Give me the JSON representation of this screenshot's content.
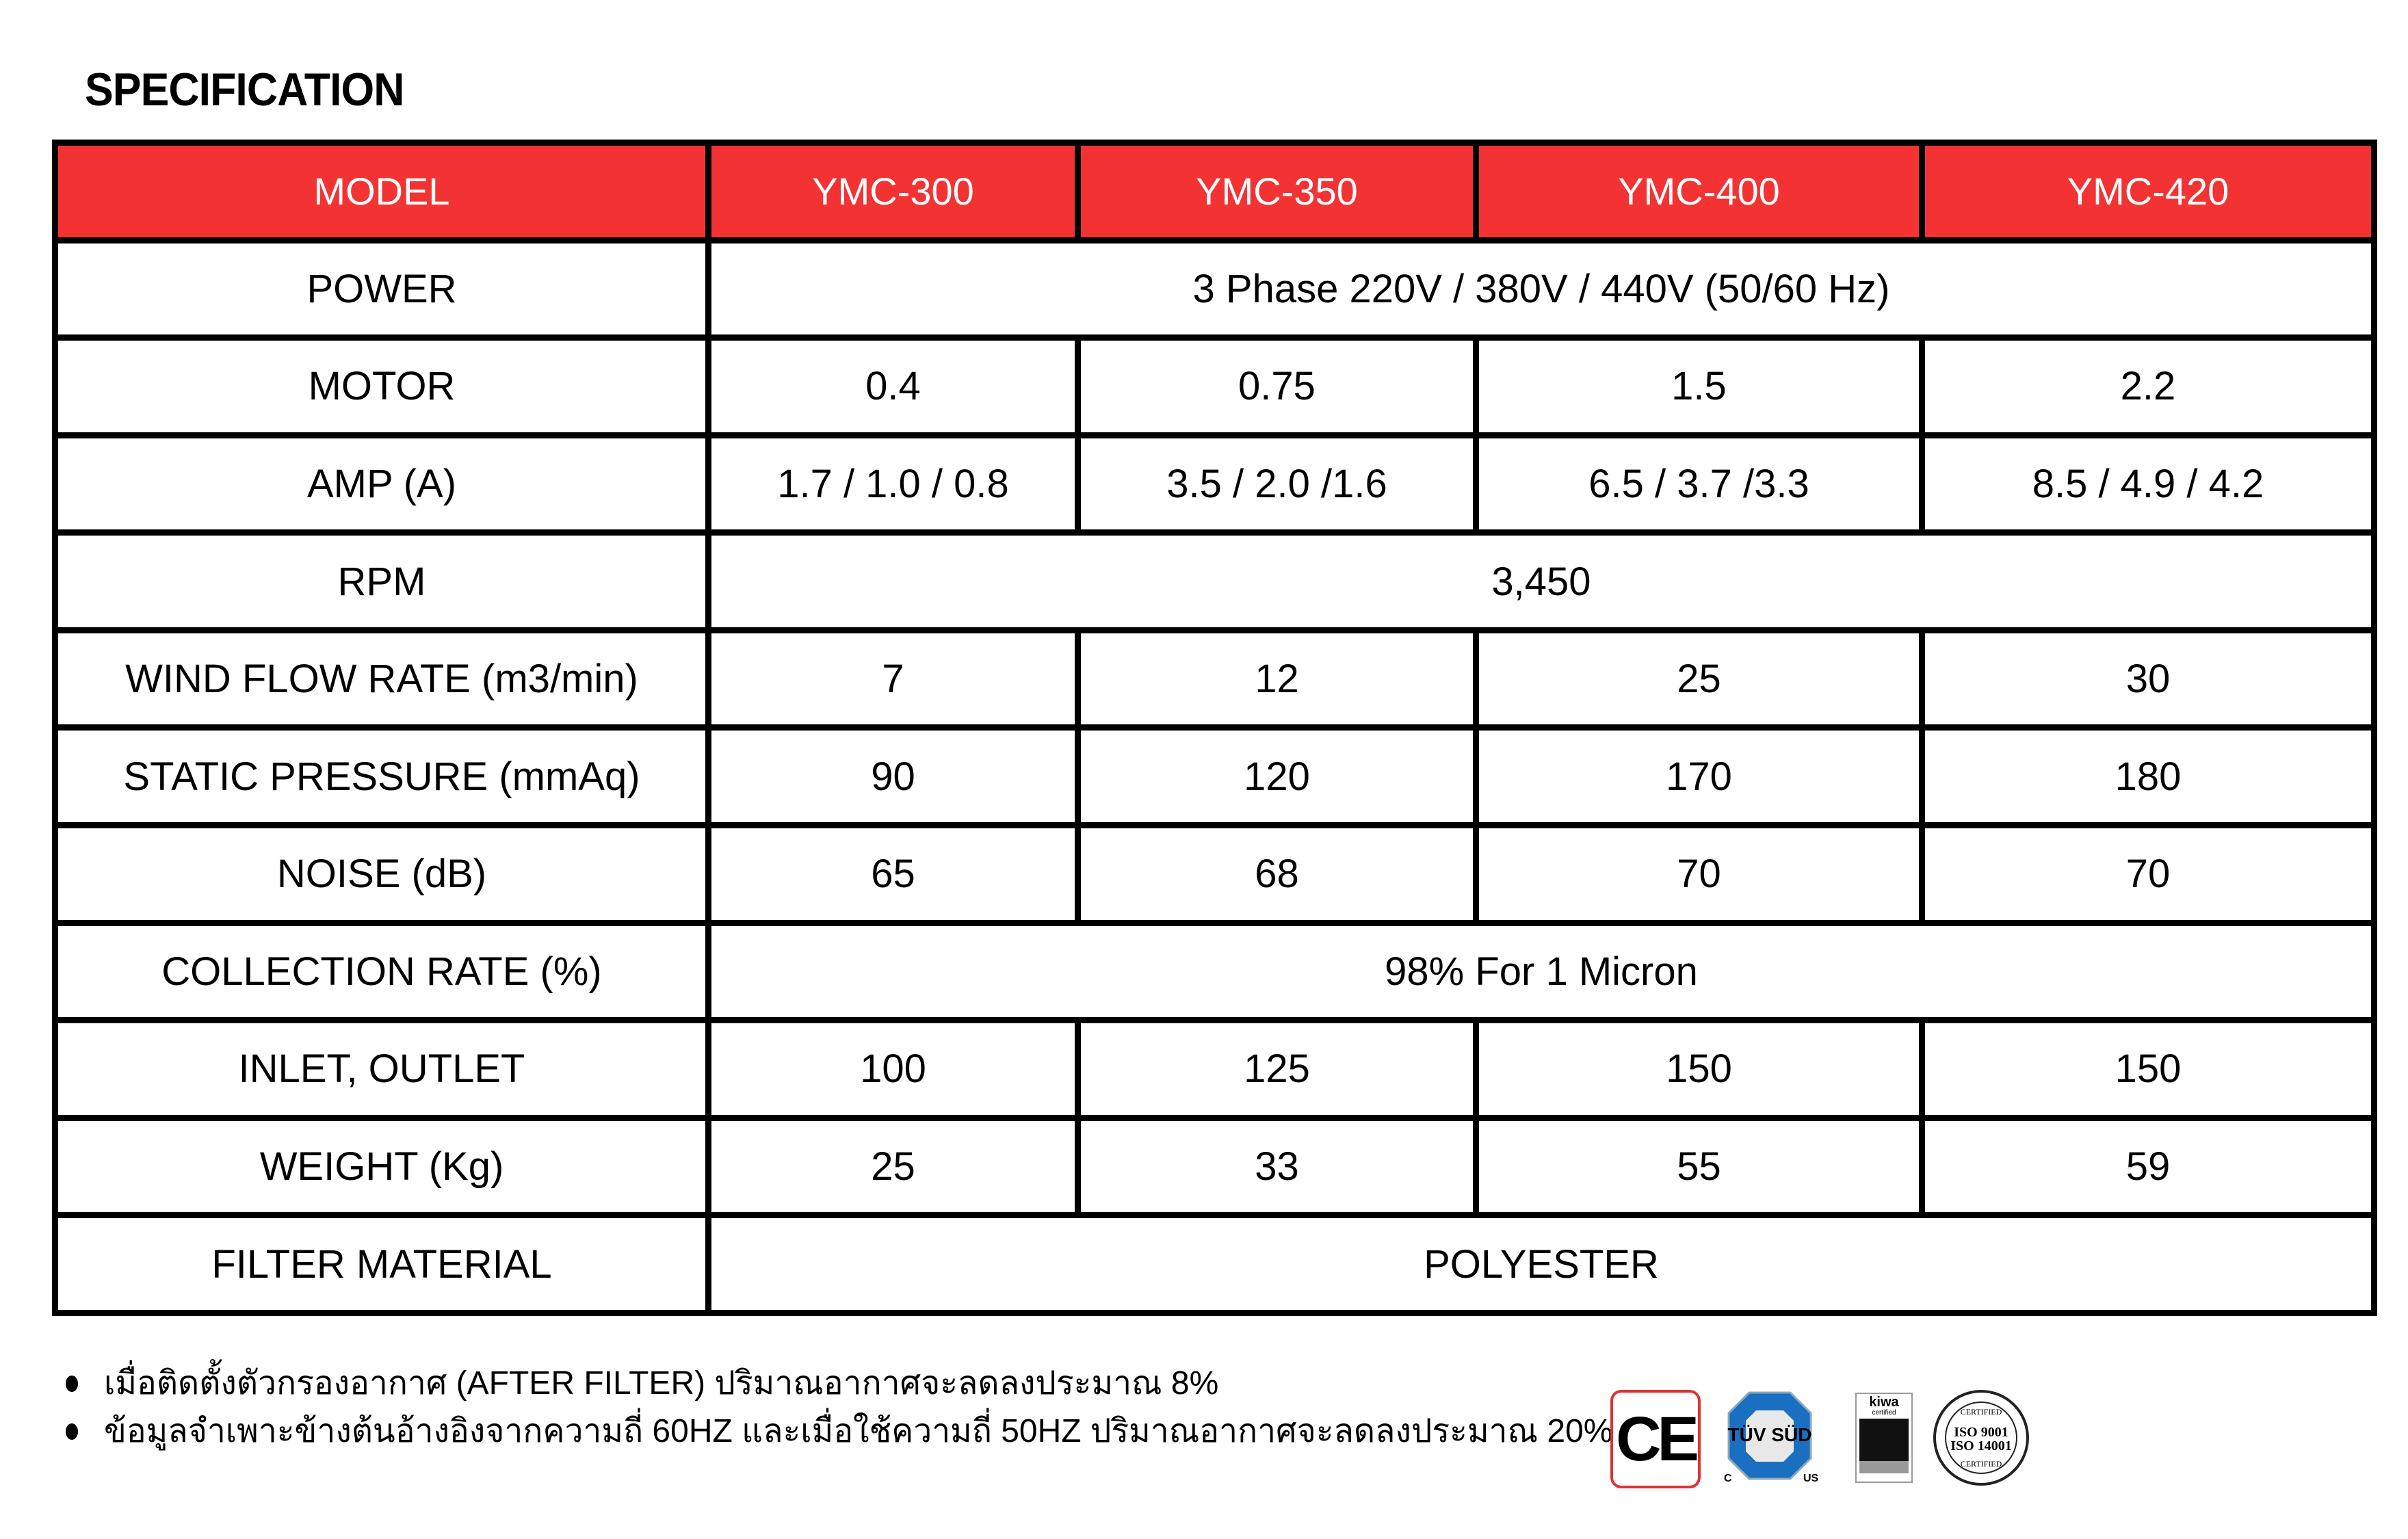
{
  "title": "SPECIFICATION",
  "table": {
    "header": [
      "MODEL",
      "YMC-300",
      "YMC-350",
      "YMC-400",
      "YMC-420"
    ],
    "rows": [
      {
        "label": "POWER",
        "span": "3 Phase 220V / 380V / 440V (50/60 Hz)"
      },
      {
        "label": "MOTOR",
        "values": [
          "0.4",
          "0.75",
          "1.5",
          "2.2"
        ]
      },
      {
        "label": "AMP (A)",
        "values": [
          "1.7 / 1.0 / 0.8",
          "3.5 / 2.0 /1.6",
          "6.5 / 3.7 /3.3",
          "8.5 / 4.9 / 4.2"
        ]
      },
      {
        "label": "RPM",
        "span": "3,450"
      },
      {
        "label": "WIND FLOW RATE (m3/min)",
        "values": [
          "7",
          "12",
          "25",
          "30"
        ]
      },
      {
        "label": "STATIC PRESSURE (mmAq)",
        "values": [
          "90",
          "120",
          "170",
          "180"
        ]
      },
      {
        "label": "NOISE (dB)",
        "values": [
          "65",
          "68",
          "70",
          "70"
        ]
      },
      {
        "label": "COLLECTION RATE (%)",
        "span": "98% For 1 Micron"
      },
      {
        "label": "INLET, OUTLET",
        "values": [
          "100",
          "125",
          "150",
          "150"
        ]
      },
      {
        "label": "WEIGHT (Kg)",
        "values": [
          "25",
          "33",
          "55",
          "59"
        ]
      },
      {
        "label": "FILTER MATERIAL",
        "span": "POLYESTER"
      }
    ]
  },
  "notes": [
    "เมื่อติดตั้งตัวกรองอากาศ (AFTER FILTER) ปริมาณอากาศจะลดลงประมาณ 8%",
    "ข้อมูลจำเพาะข้างต้นอ้างอิงจากความถี่ 60HZ และเมื่อใช้ความถี่ 50HZ ปริมาณอากาศจะลดลงประมาณ 20%"
  ],
  "logos": {
    "ce": "CE",
    "tuv": "TÜV SÜD",
    "tuv_c": "C",
    "tuv_us": "US",
    "kiwa": "kiwa",
    "kiwa_sub": "certified",
    "iso_top": "CERTIFIED",
    "iso1": "ISO 9001",
    "iso2": "ISO 14001",
    "iso_bottom": "CERTIFIED"
  },
  "colors": {
    "header_bg": "#f33333",
    "header_text": "#ffffff",
    "border": "#000000",
    "ce_border": "#dd3333",
    "tuv_blue": "#1a6fc0"
  }
}
